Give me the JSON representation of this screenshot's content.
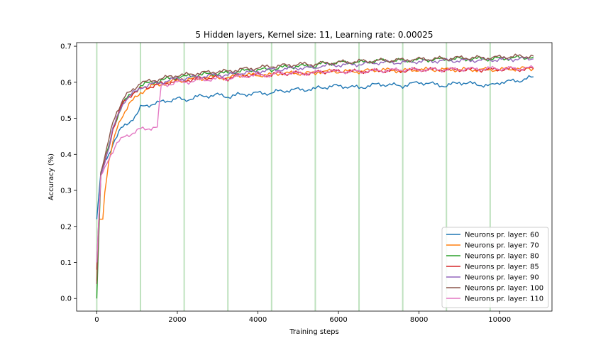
{
  "chart_data": {
    "type": "line",
    "title": "5 Hidden layers, Kernel size: 11, Learning rate: 0.00025",
    "xlabel": "Training steps",
    "ylabel": "Accuracy (%)",
    "xlim": [
      -500,
      11300
    ],
    "ylim": [
      -0.035,
      0.71
    ],
    "xticks": [
      0,
      2000,
      4000,
      6000,
      8000,
      10000
    ],
    "yticks": [
      0.0,
      0.1,
      0.2,
      0.3,
      0.4,
      0.5,
      0.6,
      0.7
    ],
    "grid": false,
    "legend_position": "lower-right",
    "vertical_markers": [
      0,
      1085,
      2170,
      3255,
      4340,
      5425,
      6510,
      7595,
      8680,
      9765
    ],
    "vertical_marker_color": "#2ca02c",
    "series": [
      {
        "name": "Neurons pr. layer: 60",
        "color": "#1f77b4",
        "x": [
          0,
          100,
          200,
          300,
          400,
          500,
          600,
          700,
          800,
          900,
          1000,
          1085,
          1200,
          1400,
          1600,
          1800,
          2000,
          2170,
          2500,
          3000,
          3255,
          3500,
          4000,
          4340,
          4500,
          5000,
          5425,
          5500,
          6000,
          6510,
          7000,
          7595,
          8000,
          8680,
          9000,
          9765,
          10000,
          10500,
          10840
        ],
        "y": [
          0.22,
          0.35,
          0.38,
          0.4,
          0.43,
          0.45,
          0.47,
          0.48,
          0.49,
          0.5,
          0.51,
          0.53,
          0.535,
          0.54,
          0.545,
          0.55,
          0.555,
          0.55,
          0.56,
          0.565,
          0.56,
          0.565,
          0.57,
          0.57,
          0.575,
          0.58,
          0.58,
          0.585,
          0.59,
          0.585,
          0.595,
          0.59,
          0.6,
          0.59,
          0.6,
          0.59,
          0.6,
          0.605,
          0.615
        ]
      },
      {
        "name": "Neurons pr. layer: 70",
        "color": "#ff7f0e",
        "x": [
          0,
          50,
          150,
          200,
          300,
          400,
          500,
          600,
          700,
          800,
          900,
          1000,
          1085,
          1200,
          1400,
          1600,
          1800,
          2000,
          2170,
          2500,
          3000,
          3255,
          3500,
          4000,
          4340,
          4500,
          5000,
          5425,
          5500,
          6000,
          6510,
          7000,
          7595,
          8000,
          8680,
          9000,
          9765,
          10000,
          10500,
          10840
        ],
        "y": [
          0.05,
          0.22,
          0.22,
          0.3,
          0.38,
          0.43,
          0.47,
          0.5,
          0.52,
          0.54,
          0.55,
          0.56,
          0.57,
          0.58,
          0.59,
          0.595,
          0.6,
          0.605,
          0.605,
          0.61,
          0.615,
          0.61,
          0.62,
          0.62,
          0.62,
          0.625,
          0.625,
          0.625,
          0.63,
          0.63,
          0.63,
          0.635,
          0.632,
          0.635,
          0.635,
          0.635,
          0.635,
          0.635,
          0.638,
          0.638
        ]
      },
      {
        "name": "Neurons pr. layer: 80",
        "color": "#2ca02c",
        "x": [
          0,
          100,
          200,
          300,
          400,
          500,
          600,
          700,
          800,
          900,
          1000,
          1085,
          1200,
          1400,
          1600,
          1800,
          2000,
          2170,
          2500,
          3000,
          3255,
          3500,
          4000,
          4340,
          4500,
          5000,
          5425,
          5500,
          6000,
          6510,
          7000,
          7595,
          8000,
          8680,
          9000,
          9765,
          10000,
          10500,
          10840
        ],
        "y": [
          0.0,
          0.34,
          0.38,
          0.42,
          0.47,
          0.5,
          0.53,
          0.55,
          0.56,
          0.57,
          0.58,
          0.59,
          0.595,
          0.6,
          0.605,
          0.61,
          0.615,
          0.615,
          0.62,
          0.625,
          0.625,
          0.63,
          0.635,
          0.635,
          0.64,
          0.645,
          0.645,
          0.65,
          0.655,
          0.655,
          0.66,
          0.66,
          0.662,
          0.664,
          0.665,
          0.665,
          0.666,
          0.668,
          0.67
        ]
      },
      {
        "name": "Neurons pr. layer: 85",
        "color": "#d62728",
        "x": [
          0,
          100,
          200,
          300,
          400,
          500,
          600,
          700,
          800,
          900,
          1000,
          1085,
          1200,
          1400,
          1600,
          1800,
          2000,
          2170,
          2500,
          3000,
          3255,
          3500,
          4000,
          4340,
          4500,
          5000,
          5425,
          5500,
          6000,
          6510,
          7000,
          7595,
          8000,
          8680,
          9000,
          9765,
          10000,
          10500,
          10840
        ],
        "y": [
          0.08,
          0.34,
          0.38,
          0.42,
          0.47,
          0.5,
          0.53,
          0.55,
          0.56,
          0.57,
          0.575,
          0.58,
          0.585,
          0.59,
          0.595,
          0.6,
          0.605,
          0.605,
          0.61,
          0.615,
          0.61,
          0.62,
          0.62,
          0.62,
          0.625,
          0.625,
          0.625,
          0.63,
          0.63,
          0.63,
          0.632,
          0.632,
          0.635,
          0.635,
          0.635,
          0.635,
          0.636,
          0.636,
          0.638
        ]
      },
      {
        "name": "Neurons pr. layer: 90",
        "color": "#9467bd",
        "x": [
          0,
          100,
          200,
          300,
          400,
          500,
          600,
          700,
          800,
          900,
          1000,
          1085,
          1200,
          1400,
          1600,
          1800,
          2000,
          2170,
          2500,
          3000,
          3255,
          3500,
          4000,
          4340,
          4500,
          5000,
          5425,
          5500,
          6000,
          6510,
          7000,
          7595,
          8000,
          8680,
          9000,
          9765,
          10000,
          10500,
          10840
        ],
        "y": [
          0.1,
          0.34,
          0.38,
          0.42,
          0.47,
          0.5,
          0.53,
          0.55,
          0.56,
          0.57,
          0.575,
          0.585,
          0.59,
          0.595,
          0.6,
          0.605,
          0.61,
          0.61,
          0.615,
          0.62,
          0.62,
          0.625,
          0.63,
          0.635,
          0.635,
          0.64,
          0.64,
          0.645,
          0.648,
          0.65,
          0.655,
          0.655,
          0.658,
          0.66,
          0.66,
          0.662,
          0.663,
          0.665,
          0.665
        ]
      },
      {
        "name": "Neurons pr. layer: 100",
        "color": "#8c564b",
        "x": [
          0,
          100,
          200,
          300,
          400,
          500,
          600,
          700,
          800,
          900,
          1000,
          1085,
          1200,
          1400,
          1600,
          1800,
          2000,
          2170,
          2500,
          3000,
          3255,
          3500,
          4000,
          4340,
          4500,
          5000,
          5425,
          5500,
          6000,
          6510,
          7000,
          7595,
          8000,
          8680,
          9000,
          9765,
          10000,
          10500,
          10840
        ],
        "y": [
          0.04,
          0.35,
          0.39,
          0.44,
          0.49,
          0.52,
          0.54,
          0.56,
          0.57,
          0.58,
          0.59,
          0.6,
          0.6,
          0.605,
          0.61,
          0.615,
          0.62,
          0.62,
          0.625,
          0.63,
          0.63,
          0.635,
          0.64,
          0.645,
          0.645,
          0.65,
          0.65,
          0.652,
          0.655,
          0.658,
          0.66,
          0.662,
          0.664,
          0.666,
          0.668,
          0.668,
          0.67,
          0.672,
          0.673
        ]
      },
      {
        "name": "Neurons pr. layer: 110",
        "color": "#e377c2",
        "x": [
          0,
          100,
          200,
          300,
          400,
          500,
          600,
          700,
          800,
          900,
          1000,
          1085,
          1200,
          1400,
          1500,
          1600,
          1800,
          2000,
          2170,
          2500,
          3000,
          3255,
          3500,
          4000,
          4340,
          4500,
          5000,
          5425,
          5500,
          6000,
          6510,
          7000,
          7595,
          8000,
          8680,
          9000,
          9765,
          10000,
          10500,
          10840
        ],
        "y": [
          0.1,
          0.34,
          0.36,
          0.39,
          0.41,
          0.43,
          0.44,
          0.45,
          0.455,
          0.46,
          0.465,
          0.47,
          0.47,
          0.475,
          0.475,
          0.59,
          0.595,
          0.6,
          0.6,
          0.605,
          0.61,
          0.61,
          0.615,
          0.62,
          0.62,
          0.625,
          0.625,
          0.625,
          0.63,
          0.63,
          0.63,
          0.632,
          0.635,
          0.635,
          0.635,
          0.636,
          0.638,
          0.638,
          0.638,
          0.64
        ]
      }
    ]
  }
}
